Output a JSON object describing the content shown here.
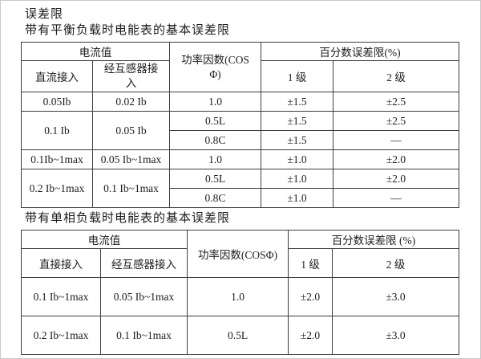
{
  "colors": {
    "text": "#1c1c1c",
    "table_border": "#3e3e3e",
    "background": "#ffffff"
  },
  "page": {
    "title": "误差限",
    "table1_caption": "带有平衡负载时电能表的基本误差限",
    "table2_caption": "带有单相负载时电能表的基本误差限"
  },
  "table1": {
    "header": {
      "current_group": "电流值",
      "col_direct": "直流接入",
      "col_transformer": "经互感器接入",
      "power_factor_line1": "功率因数(COS",
      "power_factor_line2": "Φ)",
      "percent_group": "百分数误差限(%)",
      "class1": "1 级",
      "class2": "2 级"
    },
    "rows": [
      {
        "direct": "0.05Ib",
        "transformer": "0.02 Ib",
        "pf": "1.0",
        "class1": "±1.5",
        "class2": "±2.5"
      },
      {
        "direct": "0.1 Ib",
        "transformer": "0.05 Ib",
        "pf": "0.5L",
        "class1": "±1.5",
        "class2": "±2.5"
      },
      {
        "pf": "0.8C",
        "class1": "±1.5",
        "class2": "—"
      },
      {
        "direct": "0.1Ib~1max",
        "transformer": "0.05 Ib~1max",
        "pf": "1.0",
        "class1": "±1.0",
        "class2": "±2.0"
      },
      {
        "direct": "0.2 Ib~1max",
        "transformer": "0.1 Ib~1max",
        "pf": "0.5L",
        "class1": "±1.0",
        "class2": "±2.0"
      },
      {
        "pf": "0.8C",
        "class1": "±1.0",
        "class2": "—"
      }
    ]
  },
  "table2": {
    "header": {
      "current_group": "电流值",
      "col_direct": "直接接入",
      "col_transformer": "经互感器接入",
      "power_factor": "功率因数(COSΦ)",
      "percent_group": "百分数误差限 (%)",
      "class1": "1 级",
      "class2": "2 级"
    },
    "rows": [
      {
        "direct": "0.1 Ib~1max",
        "transformer": "0.05 Ib~1max",
        "pf": "1.0",
        "class1": "±2.0",
        "class2": "±3.0"
      },
      {
        "direct": "0.2 Ib~1max",
        "transformer": "0.1 Ib~1max",
        "pf": "0.5L",
        "class1": "±2.0",
        "class2": "±3.0"
      }
    ]
  }
}
